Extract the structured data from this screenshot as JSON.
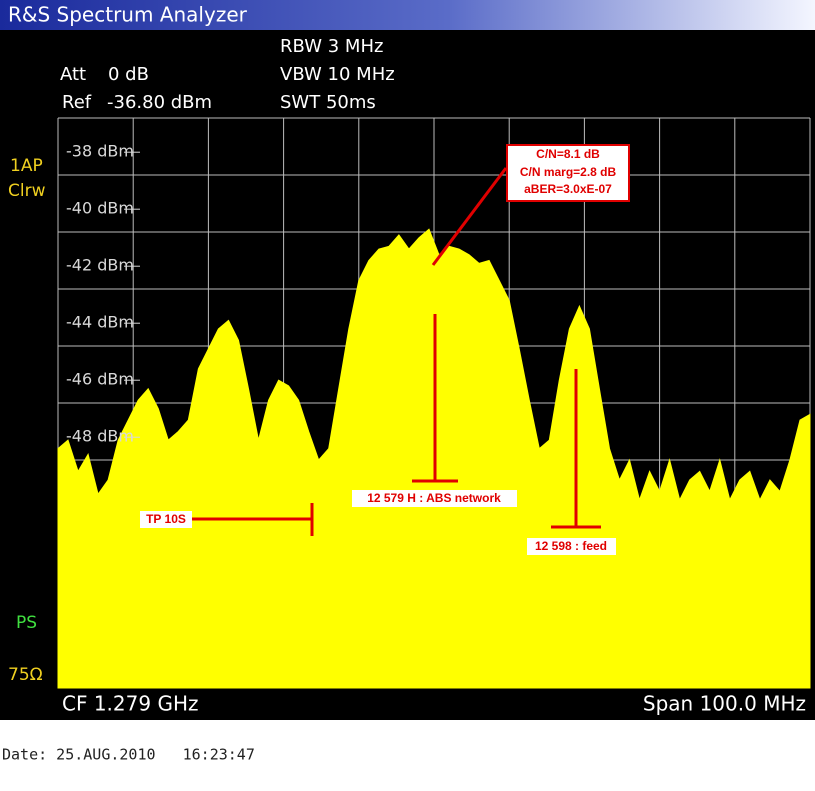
{
  "header": {
    "title": "R&S Spectrum Analyzer",
    "rbw": "RBW 3 MHz",
    "att_label": "Att",
    "att": "0 dB",
    "vbw": "VBW 10 MHz",
    "ref_label": "Ref",
    "ref": "-36.80 dBm",
    "swt": "SWT 50ms"
  },
  "side": {
    "trace": "1AP",
    "mode": "Clrw",
    "ps": "PS",
    "impedance": "75Ω"
  },
  "footer": {
    "cf": "CF 1.279 GHz",
    "span": "Span 100.0 MHz",
    "date": "Date: 25.AUG.2010   16:23:47"
  },
  "chart_data": {
    "type": "area",
    "color": "#ffff00",
    "grid": true,
    "ylim": [
      -56.8,
      -36.8
    ],
    "yticks": [
      {
        "value": -38,
        "label": "-38 dBm"
      },
      {
        "value": -40,
        "label": "-40 dBm"
      },
      {
        "value": -42,
        "label": "-42 dBm"
      },
      {
        "value": -44,
        "label": "-44 dBm"
      },
      {
        "value": -46,
        "label": "-46 dBm"
      },
      {
        "value": -48,
        "label": "-48 dBm"
      }
    ],
    "categories": [
      null,
      null,
      null,
      null,
      null,
      null,
      null,
      null,
      null,
      null,
      null,
      null,
      null,
      null,
      null,
      null,
      null,
      null,
      null,
      null,
      null,
      null,
      null,
      null,
      null,
      null,
      null,
      null,
      null,
      null,
      null,
      null,
      null,
      null,
      null,
      null,
      null,
      null,
      null,
      null,
      null,
      null,
      null,
      null,
      null,
      null,
      null,
      null,
      null,
      null,
      null,
      null,
      null,
      null,
      null,
      null,
      null,
      null,
      null,
      null,
      null,
      null,
      null,
      null,
      null,
      null,
      null,
      null,
      null,
      null,
      null,
      null,
      null,
      null,
      null,
      null
    ],
    "values": [
      -48.4,
      -48.1,
      -49.2,
      -48.6,
      -50.0,
      -49.5,
      -48.1,
      -47.4,
      -46.7,
      -46.3,
      -47.0,
      -48.1,
      -47.8,
      -47.4,
      -45.6,
      -44.9,
      -44.2,
      -43.9,
      -44.6,
      -46.3,
      -48.1,
      -46.7,
      -46.0,
      -46.2,
      -46.7,
      -47.8,
      -48.8,
      -48.4,
      -46.3,
      -44.2,
      -42.5,
      -41.8,
      -41.4,
      -41.3,
      -40.9,
      -41.4,
      -41.0,
      -40.7,
      -41.6,
      -41.3,
      -41.4,
      -41.6,
      -41.9,
      -41.8,
      -42.5,
      -43.2,
      -44.9,
      -46.7,
      -48.4,
      -48.1,
      -46.0,
      -44.2,
      -43.4,
      -44.2,
      -46.3,
      -48.4,
      -49.5,
      -48.8,
      -50.2,
      -49.2,
      -49.9,
      -48.8,
      -50.2,
      -49.5,
      -49.2,
      -49.9,
      -48.8,
      -50.2,
      -49.5,
      -49.2,
      -50.2,
      -49.5,
      -49.9,
      -48.8,
      -47.4,
      -47.2
    ],
    "annotations": [
      "C/N=8.1 dB",
      "C/N marg=2.8 dB",
      "aBER=3.0xE-07",
      "12 579 H : ABS network",
      "12 598 : feed",
      "TP 10S"
    ]
  }
}
